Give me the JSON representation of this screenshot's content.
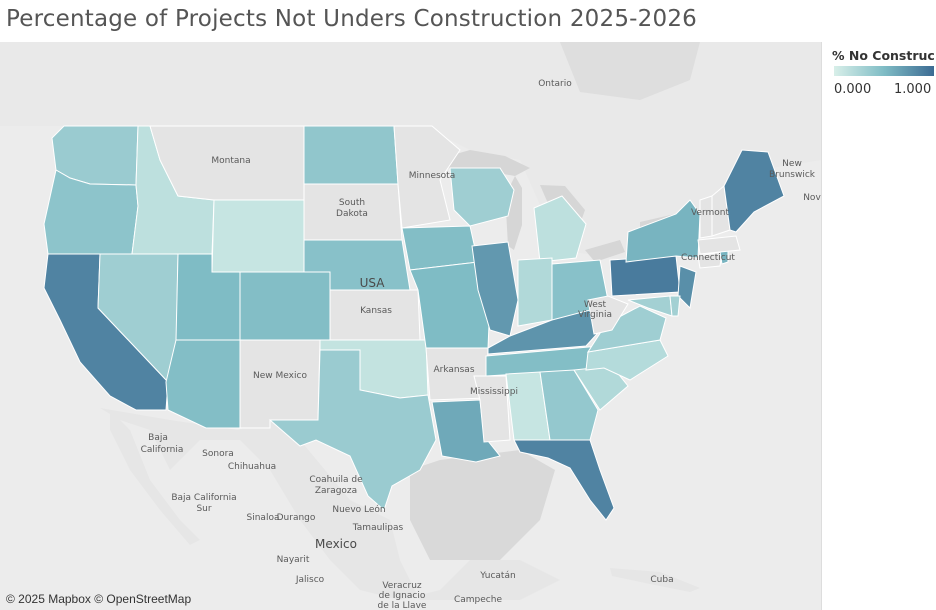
{
  "title": "Percentage of Projects Not Unders Construction 2025-2026",
  "legend": {
    "title": "% No Construc..",
    "min_label": "0.000",
    "max_label": "1.000",
    "color_low": "#d8efe9",
    "color_high": "#3c6b93"
  },
  "attribution": "© 2025 Mapbox © OpenStreetMap",
  "colors": {
    "no_data": "#e4e4e4",
    "background": "#ececec",
    "land": "#e9e9e9",
    "water": "#d4d4d4"
  },
  "geo_labels": [
    {
      "text": "Ontario",
      "big": false
    },
    {
      "text": "Montana",
      "big": false
    },
    {
      "text": "Minnesota",
      "big": false
    },
    {
      "text": "South",
      "big": false
    },
    {
      "text": "Dakota",
      "big": false
    },
    {
      "text": "USA",
      "big": true
    },
    {
      "text": "Kansas",
      "big": false
    },
    {
      "text": "New Mexico",
      "big": false
    },
    {
      "text": "Arkansas",
      "big": false
    },
    {
      "text": "Mississippi",
      "big": false
    },
    {
      "text": "West",
      "big": false
    },
    {
      "text": "Virginia",
      "big": false
    },
    {
      "text": "Vermont",
      "big": false
    },
    {
      "text": "Connecticut",
      "big": false
    },
    {
      "text": "New",
      "big": false
    },
    {
      "text": "Brunswick",
      "big": false
    },
    {
      "text": "Nov",
      "big": false
    },
    {
      "text": "Baja",
      "big": false
    },
    {
      "text": "California",
      "big": false
    },
    {
      "text": "Sonora",
      "big": false
    },
    {
      "text": "Chihuahua",
      "big": false
    },
    {
      "text": "Coahuila de",
      "big": false
    },
    {
      "text": "Zaragoza",
      "big": false
    },
    {
      "text": "Baja California",
      "big": false
    },
    {
      "text": "Sur",
      "big": false
    },
    {
      "text": "Sinaloa",
      "big": false
    },
    {
      "text": "Durango",
      "big": false
    },
    {
      "text": "Nuevo León",
      "big": false
    },
    {
      "text": "Tamaulipas",
      "big": false
    },
    {
      "text": "Mexico",
      "big": true
    },
    {
      "text": "Nayarit",
      "big": false
    },
    {
      "text": "Jalisco",
      "big": false
    },
    {
      "text": "Veracruz",
      "big": false
    },
    {
      "text": "de Ignacio",
      "big": false
    },
    {
      "text": "de la Llave",
      "big": false
    },
    {
      "text": "Yucatán",
      "big": false
    },
    {
      "text": "Campeche",
      "big": false
    },
    {
      "text": "Cuba",
      "big": false
    }
  ],
  "states": [
    {
      "name": "Washington",
      "value": 0.35
    },
    {
      "name": "Oregon",
      "value": 0.42
    },
    {
      "name": "California",
      "value": 0.85
    },
    {
      "name": "Idaho",
      "value": 0.15
    },
    {
      "name": "Nevada",
      "value": 0.32
    },
    {
      "name": "Montana",
      "value": null
    },
    {
      "name": "Wyoming",
      "value": 0.1
    },
    {
      "name": "Utah",
      "value": 0.5
    },
    {
      "name": "Arizona",
      "value": 0.48
    },
    {
      "name": "Colorado",
      "value": 0.48
    },
    {
      "name": "New Mexico",
      "value": null
    },
    {
      "name": "North Dakota",
      "value": 0.4
    },
    {
      "name": "South Dakota",
      "value": null
    },
    {
      "name": "Nebraska",
      "value": 0.45
    },
    {
      "name": "Kansas",
      "value": null
    },
    {
      "name": "Oklahoma",
      "value": 0.12
    },
    {
      "name": "Texas",
      "value": 0.35
    },
    {
      "name": "Minnesota",
      "value": null
    },
    {
      "name": "Iowa",
      "value": 0.48
    },
    {
      "name": "Missouri",
      "value": 0.5
    },
    {
      "name": "Arkansas",
      "value": null
    },
    {
      "name": "Louisiana",
      "value": 0.62
    },
    {
      "name": "Wisconsin",
      "value": 0.32
    },
    {
      "name": "Illinois",
      "value": 0.72
    },
    {
      "name": "Michigan",
      "value": 0.15
    },
    {
      "name": "Indiana",
      "value": 0.22
    },
    {
      "name": "Ohio",
      "value": 0.45
    },
    {
      "name": "Kentucky",
      "value": 0.75
    },
    {
      "name": "Tennessee",
      "value": 0.48
    },
    {
      "name": "Mississippi",
      "value": null
    },
    {
      "name": "Alabama",
      "value": 0.1
    },
    {
      "name": "Georgia",
      "value": 0.38
    },
    {
      "name": "Florida",
      "value": 0.85
    },
    {
      "name": "South Carolina",
      "value": 0.22
    },
    {
      "name": "North Carolina",
      "value": 0.2
    },
    {
      "name": "Virginia",
      "value": 0.32
    },
    {
      "name": "West Virginia",
      "value": null
    },
    {
      "name": "Pennsylvania",
      "value": 0.9
    },
    {
      "name": "New York",
      "value": 0.55
    },
    {
      "name": "New Jersey",
      "value": 0.78
    },
    {
      "name": "Maryland",
      "value": 0.3
    },
    {
      "name": "Delaware",
      "value": 0.3
    },
    {
      "name": "Connecticut",
      "value": null
    },
    {
      "name": "Rhode Island",
      "value": 0.55
    },
    {
      "name": "Massachusetts",
      "value": null
    },
    {
      "name": "Vermont",
      "value": null
    },
    {
      "name": "New Hampshire",
      "value": null
    },
    {
      "name": "Maine",
      "value": 0.85
    }
  ]
}
